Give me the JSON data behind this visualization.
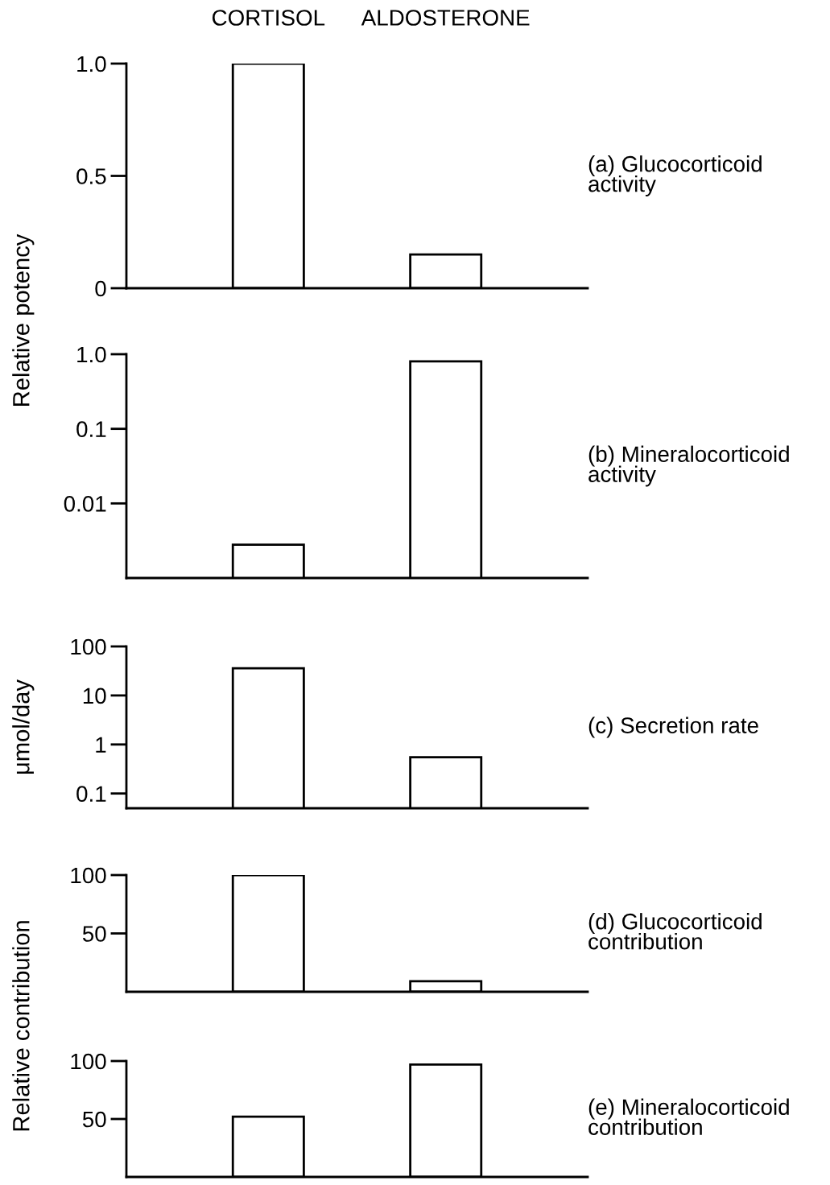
{
  "chart_data": [
    {
      "type": "bar",
      "title": "(a) Glucocorticoid\nactivity",
      "ylabel": "Relative potency",
      "categories": [
        "CORTISOL",
        "ALDOSTERONE"
      ],
      "values": [
        1.0,
        0.15
      ],
      "color": "#ffffff",
      "ylim": [
        0,
        1.0
      ],
      "yticks": [
        0,
        0.5,
        {
          "value": 1.0,
          "label": "1.0"
        }
      ],
      "grid": false
    },
    {
      "type": "bar",
      "title": "(b) Mineralocorticoid\nactivity",
      "categories": [
        null,
        null
      ],
      "values": [
        0.0028,
        0.8
      ],
      "color": "#ffffff",
      "log": true,
      "ylim": [
        0.001,
        1.0
      ],
      "yticks": [
        0.01,
        0.1,
        {
          "value": 1.0,
          "label": "1.0"
        }
      ],
      "tick_labels": "y",
      "grid": false
    },
    {
      "type": "bar",
      "title": "(c) Secretion rate",
      "ylabel": "μmol/day",
      "categories": [
        null,
        null
      ],
      "values": [
        36,
        0.55
      ],
      "color": "#ffffff",
      "log": true,
      "ylim": [
        0.05,
        100
      ],
      "yticks": [
        0.1,
        1,
        10,
        100
      ],
      "tick_labels": "y",
      "grid": false
    },
    {
      "type": "bar",
      "title": "(d) Glucocorticoid\ncontribution",
      "ylabel": "Relative contribution",
      "categories": [
        null,
        null
      ],
      "values": [
        100,
        9
      ],
      "color": "#ffffff",
      "ylim": [
        0,
        100
      ],
      "yticks": [
        50,
        100
      ],
      "tick_labels": "y",
      "grid": false
    },
    {
      "type": "bar",
      "title": "(e) Mineralocorticoid\ncontribution",
      "categories": [
        null,
        null
      ],
      "values": [
        52,
        97
      ],
      "color": "#ffffff",
      "ylim": [
        0,
        100
      ],
      "yticks": [
        50,
        100
      ],
      "tick_labels": "y",
      "grid": false
    }
  ]
}
